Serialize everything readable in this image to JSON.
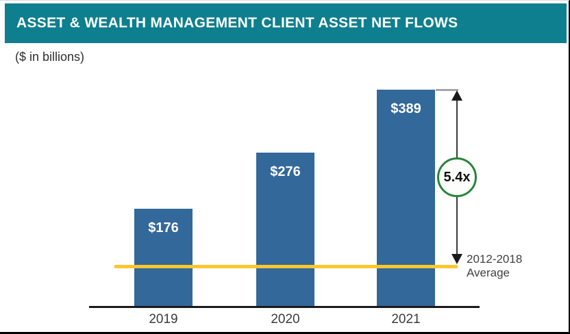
{
  "header": {
    "title": "ASSET & WEALTH MANAGEMENT CLIENT ASSET NET FLOWS"
  },
  "subtitle": "($ in billions)",
  "chart_data": {
    "type": "bar",
    "title": "ASSET & WEALTH MANAGEMENT CLIENT ASSET NET FLOWS",
    "subtitle": "($ in billions)",
    "unit": "USD billions",
    "categories": [
      "2019",
      "2020",
      "2021"
    ],
    "values": [
      176,
      276,
      389
    ],
    "value_labels": [
      "$176",
      "$276",
      "$389"
    ],
    "ylim": [
      0,
      400
    ],
    "grid": false,
    "legend": "none",
    "bar_color": "#33689B",
    "reference_line": {
      "value": 72,
      "label_line1": "2012-2018",
      "label_line2": "Average",
      "color": "#FCC72C"
    },
    "annotation": {
      "multiplier_label": "5.4x",
      "meaning": "2021 net flows vs 2012-2018 average",
      "circle_border_color": "#26843B",
      "arrow_color": "#1A1A1A"
    }
  },
  "colors": {
    "banner_bg": "#0E7F8E",
    "banner_text": "#FFFFFF",
    "bar": "#33689B",
    "average_line": "#FCC72C",
    "circle_border": "#26843B",
    "axis": "#1A1A1A",
    "label_text": "#3A3A3A"
  }
}
